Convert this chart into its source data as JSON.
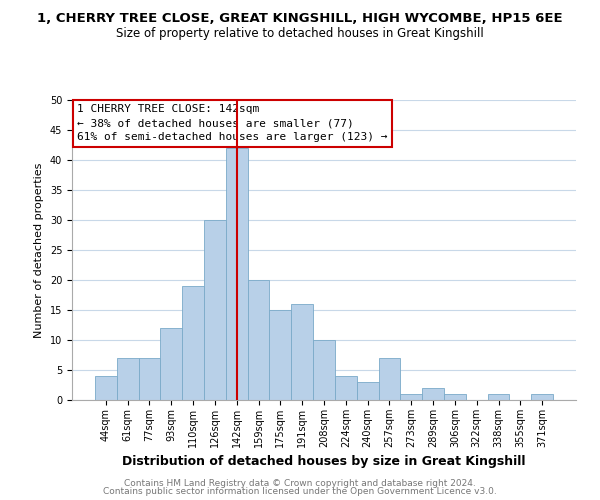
{
  "title": "1, CHERRY TREE CLOSE, GREAT KINGSHILL, HIGH WYCOMBE, HP15 6EE",
  "subtitle": "Size of property relative to detached houses in Great Kingshill",
  "xlabel": "Distribution of detached houses by size in Great Kingshill",
  "ylabel": "Number of detached properties",
  "bin_labels": [
    "44sqm",
    "61sqm",
    "77sqm",
    "93sqm",
    "110sqm",
    "126sqm",
    "142sqm",
    "159sqm",
    "175sqm",
    "191sqm",
    "208sqm",
    "224sqm",
    "240sqm",
    "257sqm",
    "273sqm",
    "289sqm",
    "306sqm",
    "322sqm",
    "338sqm",
    "355sqm",
    "371sqm"
  ],
  "bar_heights": [
    4,
    7,
    7,
    12,
    19,
    30,
    42,
    20,
    15,
    16,
    10,
    4,
    3,
    7,
    1,
    2,
    1,
    0,
    1,
    0,
    1
  ],
  "highlight_index": 6,
  "bar_color": "#b8d0e8",
  "bar_edge_color": "#7aaac8",
  "highlight_line_color": "#cc0000",
  "annotation_line1": "1 CHERRY TREE CLOSE: 142sqm",
  "annotation_line2": "← 38% of detached houses are smaller (77)",
  "annotation_line3": "61% of semi-detached houses are larger (123) →",
  "ylim": [
    0,
    50
  ],
  "yticks": [
    0,
    5,
    10,
    15,
    20,
    25,
    30,
    35,
    40,
    45,
    50
  ],
  "footer_line1": "Contains HM Land Registry data © Crown copyright and database right 2024.",
  "footer_line2": "Contains public sector information licensed under the Open Government Licence v3.0.",
  "background_color": "#ffffff",
  "grid_color": "#c8d8e8",
  "title_fontsize": 9.5,
  "subtitle_fontsize": 8.5,
  "xlabel_fontsize": 9,
  "ylabel_fontsize": 8,
  "tick_fontsize": 7,
  "annotation_fontsize": 8,
  "footer_fontsize": 6.5
}
